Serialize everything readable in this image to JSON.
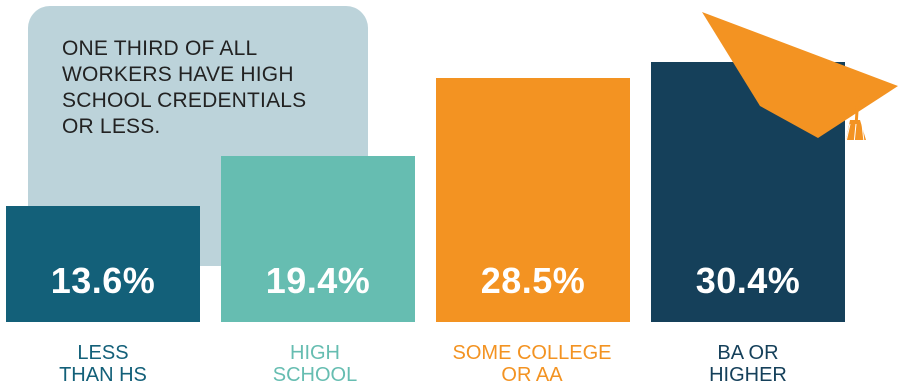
{
  "callout": {
    "lines": [
      "ONE THIRD OF ALL",
      "WORKERS HAVE HIGH",
      "SCHOOL CREDENTIALS",
      "OR LESS."
    ]
  },
  "chart_data": {
    "type": "bar",
    "categories": [
      "LESS THAN HS",
      "HIGH SCHOOL",
      "SOME COLLEGE OR AA",
      "BA OR HIGHER"
    ],
    "values": [
      13.6,
      19.4,
      28.5,
      30.4
    ],
    "value_labels": [
      "13.6%",
      "19.4%",
      "28.5%",
      "30.4%"
    ],
    "label_lines": [
      [
        "LESS",
        "THAN HS"
      ],
      [
        "HIGH",
        "SCHOOL"
      ],
      [
        "SOME COLLEGE",
        "OR AA"
      ],
      [
        "BA OR",
        "HIGHER"
      ]
    ],
    "colors": [
      "#136079",
      "#66bdb1",
      "#f39322",
      "#15405a"
    ],
    "label_colors": [
      "#136079",
      "#66bdb1",
      "#f39322",
      "#15405a"
    ],
    "ylim": [
      0,
      30.4
    ],
    "grid": false,
    "title": "",
    "xlabel": "",
    "ylabel": ""
  },
  "decoration": {
    "icon": "graduation-cap-icon",
    "color": "#f39322"
  }
}
